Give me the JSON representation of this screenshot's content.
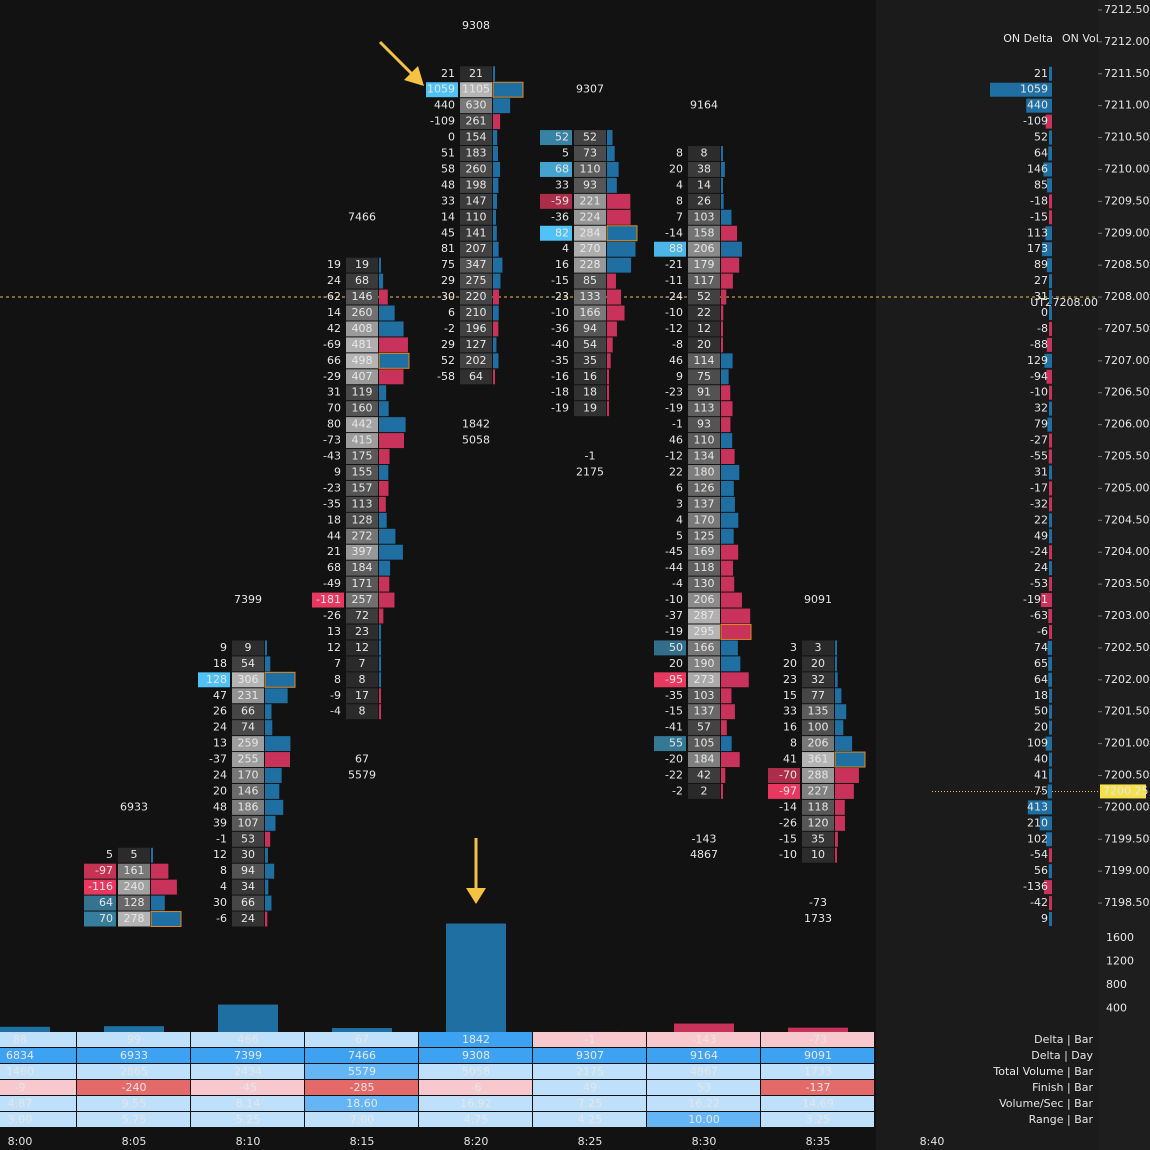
{
  "chart_data": {
    "type": "footprint",
    "categories": [
      "8:00",
      "8:05",
      "8:10",
      "8:15",
      "8:20",
      "8:25",
      "8:30",
      "8:35",
      "8:40"
    ],
    "ylim": [
      7198.125,
      7212.625
    ],
    "yticks": [
      {
        "value": 7212.5,
        "label": "7212.50"
      },
      {
        "value": 7212,
        "label": "7212.00"
      },
      {
        "value": 7211.5,
        "label": "7211.50"
      },
      {
        "value": 7211,
        "label": "7211.00"
      },
      {
        "value": 7210.5,
        "label": "7210.50"
      },
      {
        "value": 7210,
        "label": "7210.00"
      },
      {
        "value": 7209.5,
        "label": "7209.50"
      },
      {
        "value": 7209,
        "label": "7209.00"
      },
      {
        "value": 7208.5,
        "label": "7208.50"
      },
      {
        "value": 7208,
        "label": "7208.00"
      },
      {
        "value": 7207.5,
        "label": "7207.50"
      },
      {
        "value": 7207,
        "label": "7207.00"
      },
      {
        "value": 7206.5,
        "label": "7206.50"
      },
      {
        "value": 7206,
        "label": "7206.00"
      },
      {
        "value": 7205.5,
        "label": "7205.50"
      },
      {
        "value": 7205,
        "label": "7205.00"
      },
      {
        "value": 7204.5,
        "label": "7204.50"
      },
      {
        "value": 7204,
        "label": "7204.00"
      },
      {
        "value": 7203.5,
        "label": "7203.50"
      },
      {
        "value": 7203,
        "label": "7203.00"
      },
      {
        "value": 7202.5,
        "label": "7202.50"
      },
      {
        "value": 7202,
        "label": "7202.00"
      },
      {
        "value": 7201.5,
        "label": "7201.50"
      },
      {
        "value": 7201,
        "label": "7201.00"
      },
      {
        "value": 7200.5,
        "label": "7200.50"
      },
      {
        "value": 7200,
        "label": "7200.00"
      },
      {
        "value": 7199.5,
        "label": "7199.50"
      },
      {
        "value": 7199,
        "label": "7199.00"
      },
      {
        "value": 7198.5,
        "label": "7198.50"
      }
    ],
    "bars": [
      null,
      {
        "high": 7199.25,
        "low": 7198.25,
        "delta": [
          5,
          -97,
          -116,
          64,
          70
        ],
        "volume": [
          5,
          161,
          240,
          128,
          278
        ],
        "day_delta": 6933
      },
      {
        "high": 7202.5,
        "low": 7198.25,
        "delta": [
          9,
          18,
          128,
          47,
          26,
          24,
          13,
          -37,
          24,
          20,
          48,
          39,
          -1,
          12,
          8,
          4,
          30,
          -6
        ],
        "volume": [
          9,
          54,
          306,
          231,
          66,
          74,
          259,
          255,
          170,
          146,
          186,
          107,
          53,
          30,
          94,
          34,
          66,
          24
        ],
        "day_delta": 7399
      },
      {
        "high": 7208.5,
        "low": 7201.5,
        "delta": [
          19,
          24,
          -62,
          14,
          42,
          -69,
          66,
          -29,
          31,
          70,
          80,
          -73,
          -43,
          9,
          -23,
          -35,
          18,
          44,
          21,
          68,
          -49,
          -181,
          -26,
          13,
          12,
          7,
          8,
          -9,
          -4
        ],
        "volume": [
          19,
          68,
          146,
          260,
          408,
          481,
          498,
          407,
          119,
          160,
          442,
          415,
          175,
          155,
          157,
          113,
          128,
          272,
          397,
          184,
          171,
          257,
          72,
          23,
          12,
          7,
          8,
          17,
          8
        ],
        "day_delta": 7466,
        "bar_delta": 67,
        "total_volume": 5579
      },
      {
        "high": 7211.5,
        "low": 7206.75,
        "delta": [
          21,
          1059,
          440,
          -109,
          0,
          51,
          58,
          48,
          33,
          14,
          45,
          81,
          75,
          29,
          -30,
          6,
          -2,
          29,
          52,
          -58
        ],
        "volume": [
          21,
          1105,
          630,
          261,
          154,
          183,
          260,
          198,
          147,
          110,
          141,
          207,
          347,
          275,
          220,
          210,
          196,
          127,
          202,
          64
        ],
        "day_delta": 9308,
        "bar_delta": 1842,
        "total_volume": 5058
      },
      {
        "high": 7210.5,
        "low": 7206.25,
        "delta": [
          52,
          5,
          68,
          33,
          -59,
          -36,
          82,
          4,
          16,
          -15,
          -23,
          -10,
          -36,
          -40,
          -35,
          -16,
          -18,
          -19
        ],
        "volume": [
          52,
          73,
          110,
          93,
          221,
          224,
          284,
          270,
          228,
          85,
          133,
          166,
          94,
          54,
          35,
          16,
          18,
          19
        ],
        "day_delta": 9307,
        "bar_delta": -1,
        "total_volume": 2175
      },
      {
        "high": 7210.25,
        "low": 7200.25,
        "delta": [
          8,
          20,
          4,
          8,
          7,
          -14,
          88,
          -21,
          -11,
          -24,
          -10,
          -12,
          -8,
          46,
          9,
          -23,
          -19,
          -1,
          46,
          -12,
          22,
          6,
          3,
          4,
          5,
          -45,
          -44,
          -4,
          -10,
          -37,
          -19,
          50,
          20,
          -95,
          -35,
          -15,
          -41,
          55,
          -20,
          -22,
          -2
        ],
        "volume": [
          8,
          38,
          14,
          26,
          103,
          158,
          206,
          179,
          117,
          52,
          22,
          12,
          20,
          114,
          75,
          91,
          113,
          93,
          110,
          134,
          180,
          126,
          137,
          170,
          125,
          169,
          118,
          130,
          206,
          287,
          295,
          166,
          190,
          273,
          103,
          137,
          57,
          105,
          184,
          42,
          2
        ],
        "day_delta": 9164,
        "bar_delta": -143,
        "total_volume": 4867
      },
      {
        "high": 7202.5,
        "low": 7199.25,
        "delta": [
          3,
          20,
          23,
          15,
          33,
          16,
          8,
          41,
          -70,
          -97,
          -14,
          -26,
          -15,
          -10
        ],
        "volume": [
          3,
          20,
          32,
          77,
          135,
          100,
          206,
          361,
          288,
          227,
          118,
          120,
          35,
          10
        ],
        "day_delta": 9091,
        "bar_delta": -73,
        "total_volume": 1733
      },
      null
    ],
    "levels": [
      {
        "label": "UT2",
        "price": {
          "value": 7208,
          "label": "7208.00"
        }
      }
    ],
    "last_price": {
      "value": 7200.25,
      "label": "7200.25"
    },
    "y2lim": [
      0,
      1800
    ],
    "y2ticks": [
      400,
      800,
      1200,
      1600
    ],
    "profile": {
      "title": "ON Delta",
      "volume_title": "ON Vol",
      "high": 7211.5,
      "low": 7198.25,
      "values": [
        21,
        1059,
        440,
        -109,
        52,
        64,
        146,
        85,
        -18,
        -15,
        113,
        173,
        89,
        27,
        31,
        0,
        -8,
        -88,
        129,
        -94,
        -10,
        32,
        79,
        -27,
        -55,
        31,
        -17,
        -32,
        22,
        49,
        -24,
        24,
        -53,
        -191,
        -63,
        -6,
        74,
        65,
        64,
        18,
        50,
        20,
        109,
        40,
        41,
        75,
        413,
        210,
        102,
        -54,
        56,
        -136,
        -42,
        9
      ]
    },
    "stats": [
      {
        "label": "Delta | Bar",
        "values": [
          88,
          99,
          466,
          67,
          1842,
          -1,
          -143,
          -73
        ]
      },
      {
        "label": "Delta | Day",
        "values": [
          6834,
          6933,
          7399,
          7466,
          9308,
          9307,
          9164,
          9091
        ]
      },
      {
        "label": "Total Volume | Bar",
        "values": [
          1460,
          2865,
          2434,
          5579,
          5058,
          2175,
          4867,
          1733
        ]
      },
      {
        "label": "Finish | Bar",
        "values": [
          -9,
          -240,
          -45,
          -285,
          -6,
          49,
          53,
          -137
        ]
      },
      {
        "label": "Volume/Sec | Bar",
        "values": [
          4.87,
          9.55,
          8.14,
          18.6,
          16.92,
          7.25,
          16.22,
          14.69
        ],
        "value_labels": [
          "4.87",
          "9.55",
          "8.14",
          "18.60",
          "16.92",
          "7.25",
          "16.22",
          "14.69"
        ]
      },
      {
        "label": "Range | Bar",
        "values": [
          3,
          5.75,
          5.25,
          7,
          4.75,
          4.25,
          10,
          3.25
        ],
        "value_labels": [
          "3.00",
          "5.75",
          "5.25",
          "7.00",
          "4.75",
          "4.25",
          "10.00",
          "3.25"
        ]
      }
    ]
  }
}
